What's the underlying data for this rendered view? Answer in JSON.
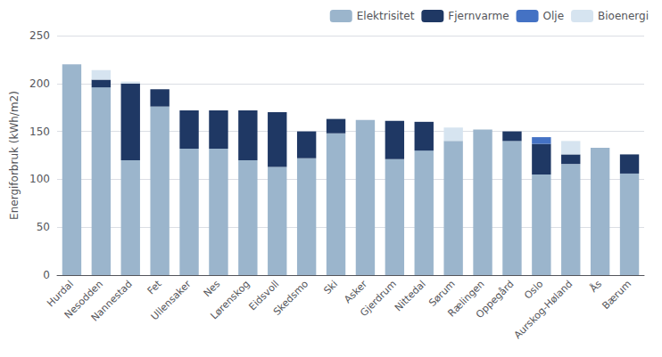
{
  "chart_data": {
    "type": "bar",
    "stacked": true,
    "categories": [
      "Hurdal",
      "Nesodden",
      "Nannestad",
      "Fet",
      "Ullensaker",
      "Nes",
      "Lørenskog",
      "Eidsvoll",
      "Skedsmo",
      "Ski",
      "Asker",
      "Gjerdrum",
      "Nittedal",
      "Sørum",
      "Rælingen",
      "Oppegård",
      "Oslo",
      "Aurskog-Høland",
      "Ås",
      "Bærum"
    ],
    "series": [
      {
        "name": "Elektrisitet",
        "color": "#9BB5CC",
        "values": [
          220,
          196,
          120,
          176,
          132,
          132,
          120,
          113,
          122,
          148,
          162,
          121,
          130,
          140,
          152,
          140,
          105,
          116,
          133,
          106
        ]
      },
      {
        "name": "Fjernvarme",
        "color": "#1F3864",
        "values": [
          0,
          8,
          80,
          18,
          40,
          40,
          52,
          57,
          28,
          15,
          0,
          40,
          30,
          0,
          0,
          10,
          32,
          10,
          0,
          20
        ]
      },
      {
        "name": "Olje",
        "color": "#4472C4",
        "values": [
          0,
          0,
          0,
          0,
          0,
          0,
          0,
          0,
          0,
          0,
          0,
          0,
          0,
          0,
          0,
          0,
          7,
          0,
          0,
          0
        ]
      },
      {
        "name": "Bioenergi",
        "color": "#D6E4F0",
        "values": [
          0,
          10,
          2,
          0,
          0,
          0,
          0,
          0,
          0,
          0,
          0,
          0,
          0,
          14,
          0,
          0,
          0,
          14,
          0,
          0
        ]
      }
    ],
    "ylabel": "Energiforbruk (kWh/m2)",
    "ylim": [
      0,
      250
    ],
    "yticks": [
      0,
      50,
      100,
      150,
      200,
      250
    ],
    "grid": true,
    "legend": "upper right"
  }
}
